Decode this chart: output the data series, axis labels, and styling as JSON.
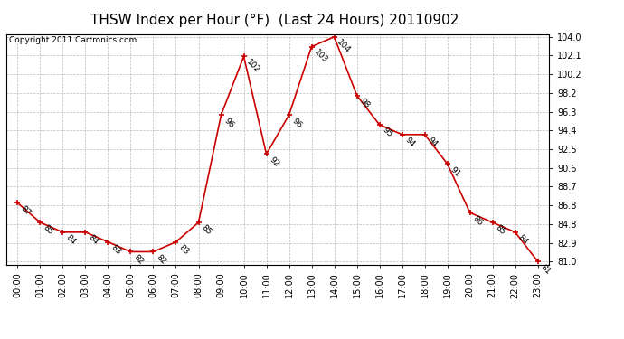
{
  "title": "THSW Index per Hour (°F)  (Last 24 Hours) 20110902",
  "copyright": "Copyright 2011 Cartronics.com",
  "hours": [
    "00:00",
    "01:00",
    "02:00",
    "03:00",
    "04:00",
    "05:00",
    "06:00",
    "07:00",
    "08:00",
    "09:00",
    "10:00",
    "11:00",
    "12:00",
    "13:00",
    "14:00",
    "15:00",
    "16:00",
    "17:00",
    "18:00",
    "19:00",
    "20:00",
    "21:00",
    "22:00",
    "23:00"
  ],
  "values": [
    87,
    85,
    84,
    84,
    83,
    82,
    82,
    83,
    85,
    96,
    102,
    92,
    96,
    103,
    104,
    98,
    95,
    94,
    94,
    91,
    86,
    85,
    84,
    81
  ],
  "yticks": [
    81.0,
    82.9,
    84.8,
    86.8,
    88.7,
    90.6,
    92.5,
    94.4,
    96.3,
    98.2,
    100.2,
    102.1,
    104.0
  ],
  "ymin": 80.7,
  "ymax": 104.3,
  "line_color": "#cc0000",
  "marker_color": "#cc0000",
  "bg_color": "#ffffff",
  "grid_color": "#bbbbbb",
  "title_fontsize": 11,
  "copyright_fontsize": 6.5,
  "label_fontsize": 6.5,
  "tick_fontsize": 7
}
